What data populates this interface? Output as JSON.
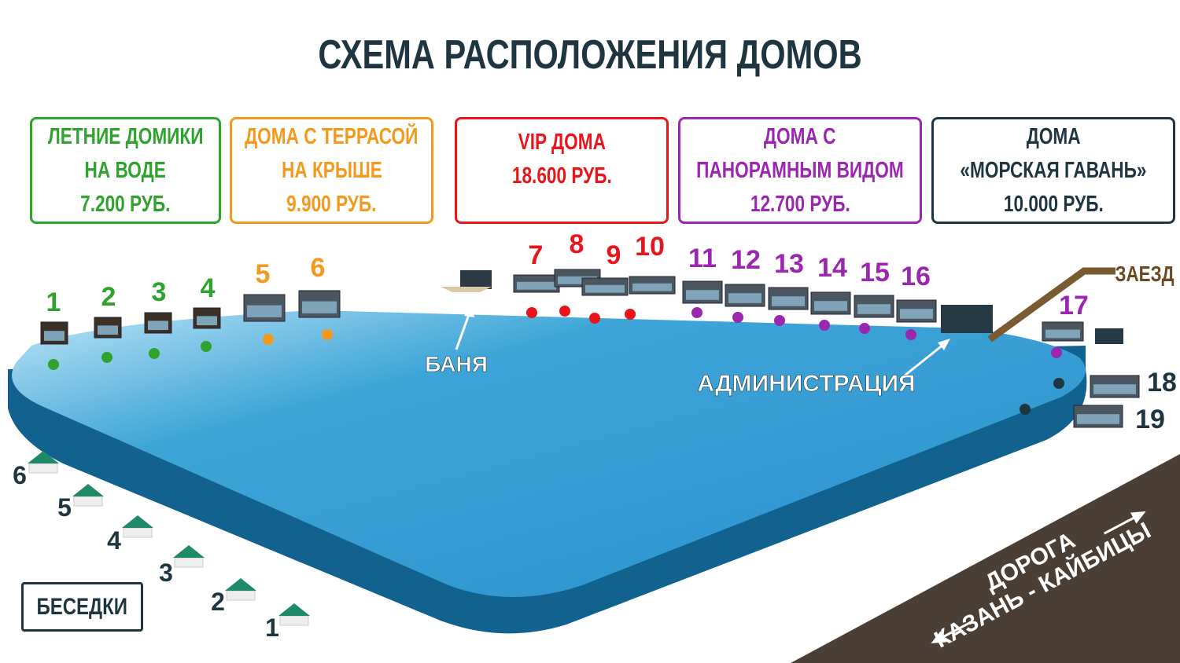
{
  "title": "СХЕМА РАСПОЛОЖЕНИЯ ДОМОВ",
  "categories": [
    {
      "lines": [
        "ЛЕТНИЕ ДОМИКИ",
        "НА ВОДЕ",
        "7.200 РУБ."
      ],
      "color": "#2ea32e"
    },
    {
      "lines": [
        "ДОМА С ТЕРРАСОЙ",
        "НА КРЫШЕ",
        "9.900 РУБ."
      ],
      "color": "#f39a1e"
    },
    {
      "lines": [
        "VIP ДОМА",
        "18.600 РУБ."
      ],
      "color": "#e8161b"
    },
    {
      "lines": [
        "ДОМА С",
        "ПАНОРАМНЫМ ВИДОМ",
        "12.700 РУБ."
      ],
      "color": "#9b27b0"
    },
    {
      "lines": [
        "ДОМА",
        "«МОРСКАЯ ГАВАНЬ»",
        "10.000 РУБ."
      ],
      "color": "#1f3640"
    }
  ],
  "houses": [
    {
      "num": "1",
      "category": 0
    },
    {
      "num": "2",
      "category": 0
    },
    {
      "num": "3",
      "category": 0
    },
    {
      "num": "4",
      "category": 0
    },
    {
      "num": "5",
      "category": 1
    },
    {
      "num": "6",
      "category": 1
    },
    {
      "num": "7",
      "category": 2
    },
    {
      "num": "8",
      "category": 2
    },
    {
      "num": "9",
      "category": 2
    },
    {
      "num": "10",
      "category": 2
    },
    {
      "num": "11",
      "category": 3
    },
    {
      "num": "12",
      "category": 3
    },
    {
      "num": "13",
      "category": 3
    },
    {
      "num": "14",
      "category": 3
    },
    {
      "num": "15",
      "category": 3
    },
    {
      "num": "16",
      "category": 3
    },
    {
      "num": "17",
      "category": 3
    },
    {
      "num": "18",
      "category": 4
    },
    {
      "num": "19",
      "category": 4
    }
  ],
  "labels": {
    "banya": "БАНЯ",
    "administration": "АДМИНИСТРАЦИЯ",
    "entrance": "ЗАЕЗД",
    "road_line1": "ДОРОГА",
    "road_line2": "КАЗАНЬ - КАЙБИЦЫ",
    "gazebos": "БЕСЕДКИ"
  },
  "gazebos": [
    "1",
    "2",
    "3",
    "4",
    "5",
    "6"
  ],
  "colors": {
    "water": "#3fa6d6",
    "water_side": "#11628f",
    "road": "#4a3e35",
    "entrance_road": "#7a5a30"
  }
}
